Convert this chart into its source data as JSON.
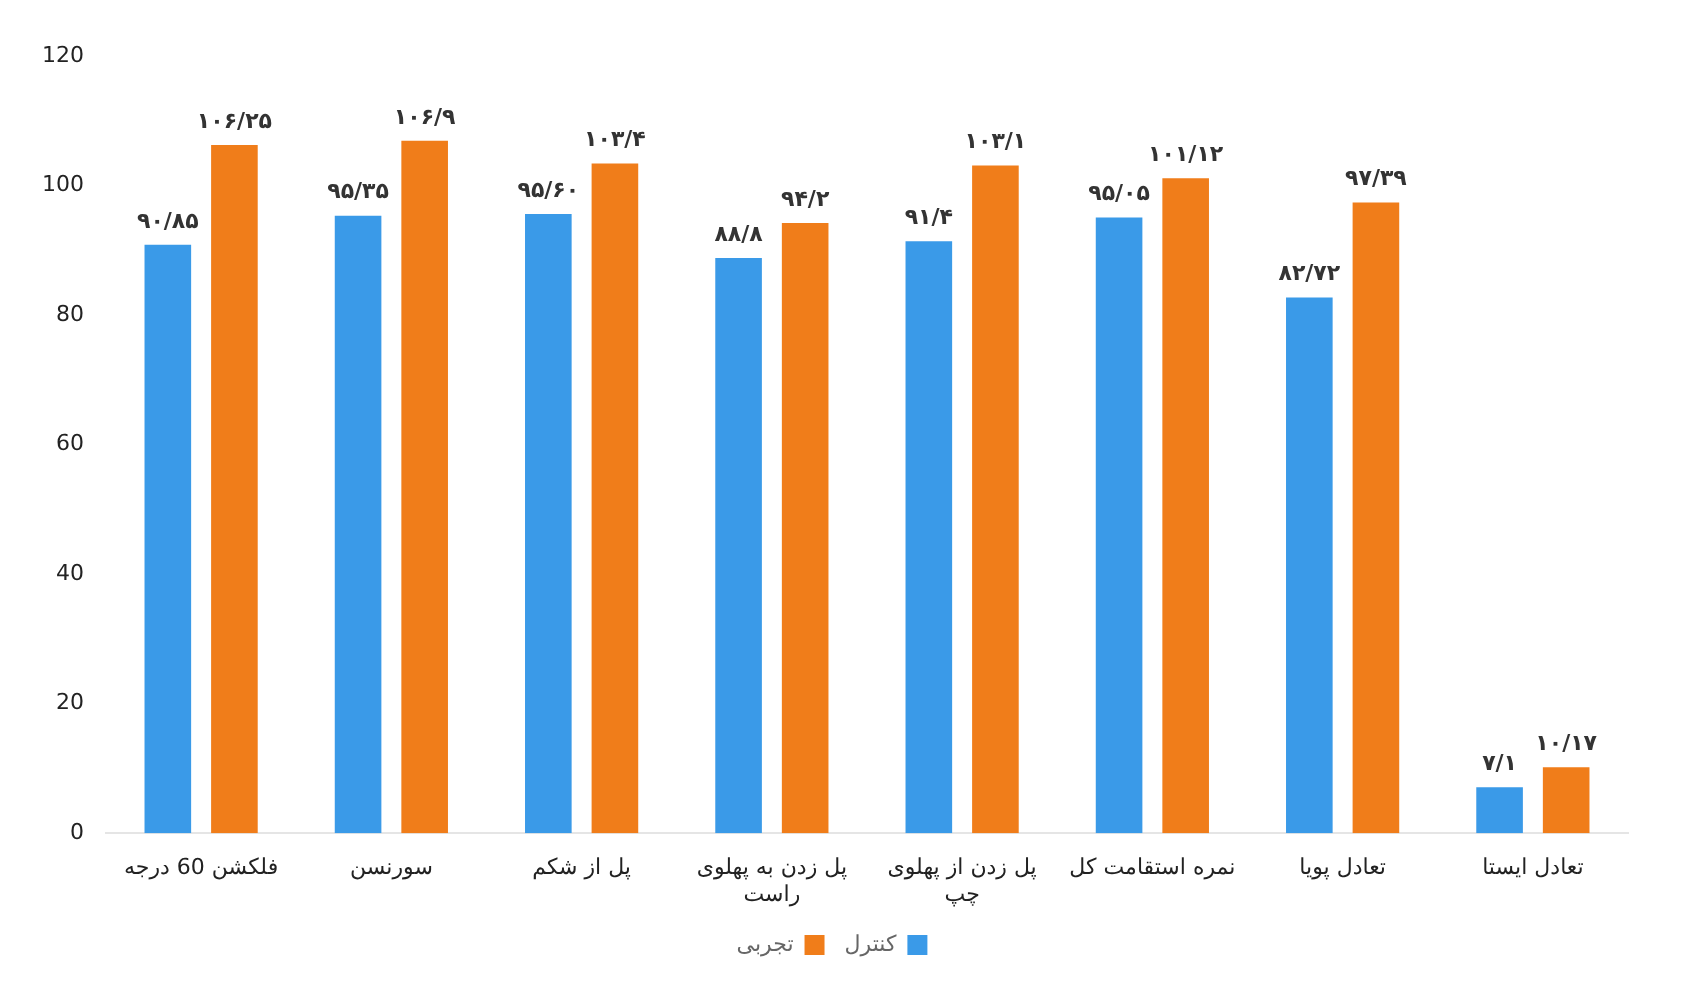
{
  "chart_data": {
    "type": "bar",
    "categories": [
      "فلکشن 60 درجه",
      "سورنسن",
      "پل از شکم",
      "پل زدن به پهلوی راست",
      "پل زدن از پهلوی چپ",
      "نمره استقامت کل",
      "تعادل پویا",
      "تعادل ایستا"
    ],
    "series": [
      {
        "name": "کنترل",
        "color": "#3a9ae8",
        "values": [
          90.85,
          95.35,
          95.6,
          88.8,
          91.4,
          95.05,
          82.72,
          7.1
        ],
        "value_labels": [
          "۹۰/۸۵",
          "۹۵/۳۵",
          "۹۵/۶۰",
          "۸۸/۸",
          "۹۱/۴",
          "۹۵/۰۵",
          "۸۲/۷۲",
          "۷/۱"
        ]
      },
      {
        "name": "تجربی",
        "color": "#f07d1a",
        "values": [
          106.25,
          106.9,
          103.4,
          94.2,
          103.1,
          101.12,
          97.39,
          10.17
        ],
        "value_labels": [
          "۱۰۶/۲۵",
          "۱۰۶/۹",
          "۱۰۳/۴",
          "۹۴/۲",
          "۱۰۳/۱",
          "۱۰۱/۱۲",
          "۹۷/۳۹",
          "۱۰/۱۷"
        ]
      }
    ],
    "ylim": [
      0,
      120
    ],
    "yticks": [
      0,
      20,
      40,
      60,
      80,
      100,
      120
    ],
    "legend": "bottom"
  }
}
